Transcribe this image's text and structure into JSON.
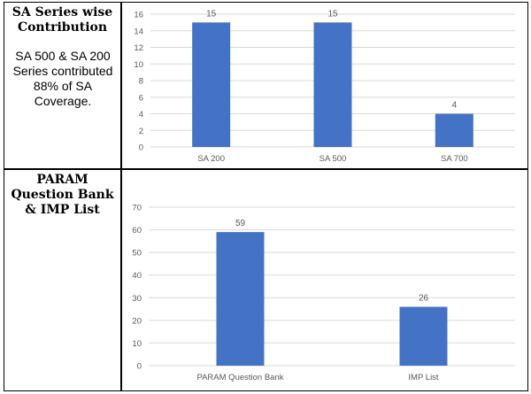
{
  "row1": {
    "title_line1": "SA Series wise",
    "title_line2": "Contribution",
    "desc_line1": "SA 500 & SA 200",
    "desc_line2": "Series contributed",
    "desc_line3": "88% of SA",
    "desc_line4": "Coverage."
  },
  "row2": {
    "title_line1": "PARAM",
    "title_line2": "Question Bank",
    "title_line3": "& IMP List"
  },
  "colors": {
    "bar": "#4472C4",
    "grid": "#d9d9d9",
    "text": "#595959"
  },
  "chart_data": [
    {
      "type": "bar",
      "categories": [
        "SA 200",
        "SA 500",
        "SA 700"
      ],
      "values": [
        15,
        15,
        4
      ],
      "ylim": [
        0,
        16
      ],
      "yticks": [
        0,
        2,
        4,
        6,
        8,
        10,
        12,
        14,
        16
      ],
      "grid": true
    },
    {
      "type": "bar",
      "categories": [
        "PARAM Question Bank",
        "IMP List"
      ],
      "values": [
        59,
        26
      ],
      "ylim": [
        0,
        70
      ],
      "yticks": [
        0,
        10,
        20,
        30,
        40,
        50,
        60,
        70
      ],
      "grid": true
    }
  ]
}
